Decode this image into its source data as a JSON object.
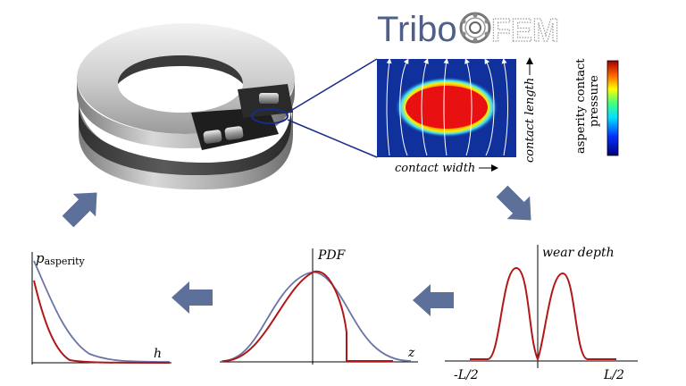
{
  "logo": {
    "left": "Tribo",
    "right": "FEM"
  },
  "contact_map": {
    "width_label": "contact width",
    "length_label": "contact length",
    "colorbar_label_line1": "asperity contact",
    "colorbar_label_line2": "pressure"
  },
  "plots": {
    "pressure": {
      "ylabel_main": "p",
      "ylabel_sub": "asperity",
      "xlabel": "h"
    },
    "pdf": {
      "ylabel": "PDF",
      "xlabel": "z"
    },
    "wear": {
      "ylabel": "wear depth",
      "tick_left": "-L/2",
      "tick_right": "L/2"
    }
  },
  "colors": {
    "logo_text": "#4f5f88",
    "arrow": "#5c7099",
    "red_curve": "#b01818",
    "blue_curve": "#6a74a8",
    "map_bg": "#10309c"
  }
}
